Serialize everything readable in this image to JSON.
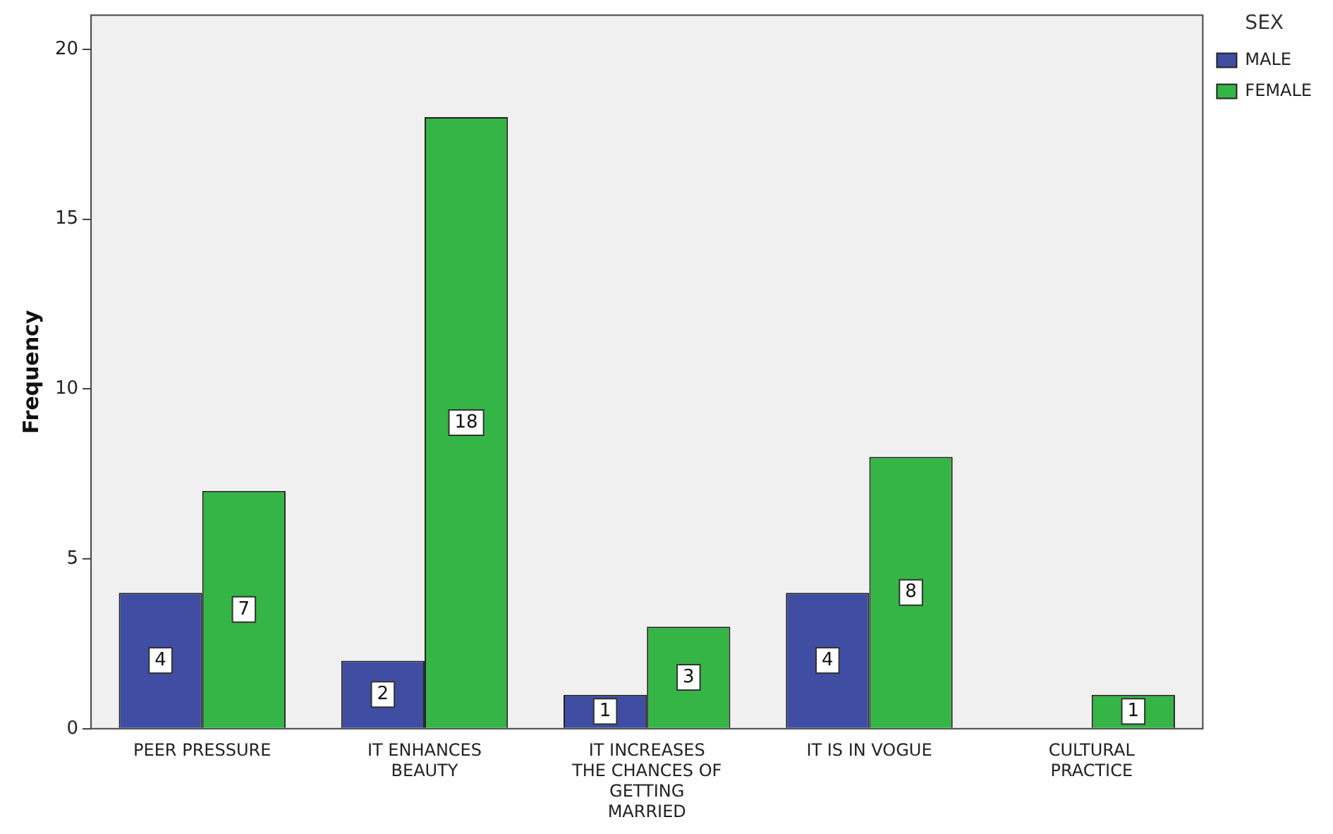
{
  "chart_data": {
    "type": "bar",
    "ylabel": "Frequency",
    "legend_title": "SEX",
    "legend": "top right",
    "data_labels": true,
    "grid": false,
    "categories": [
      "PEER PRESSURE",
      "IT ENHANCES BEAUTY",
      "IT INCREASES THE CHANCES OF GETTING MARRIED",
      "IT IS IN VOGUE",
      "CULTURAL PRACTICE"
    ],
    "series": [
      {
        "name": "MALE",
        "color": "#3f4ea3",
        "values": [
          4,
          2,
          1,
          4,
          null
        ]
      },
      {
        "name": "FEMALE",
        "color": "#35b546",
        "values": [
          7,
          18,
          3,
          8,
          1
        ]
      }
    ],
    "ylim": [
      0,
      21
    ],
    "yticks": [
      0,
      5,
      10,
      15,
      20
    ]
  }
}
